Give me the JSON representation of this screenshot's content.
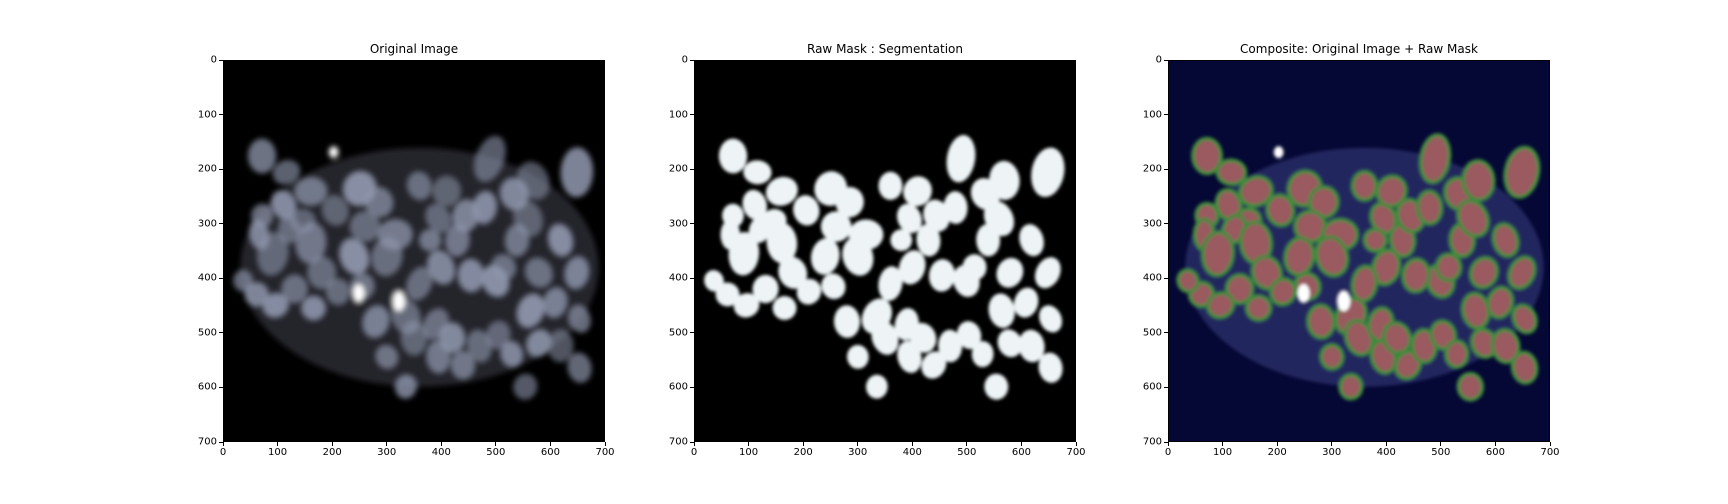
{
  "panels": [
    {
      "id": "original",
      "title": "Original Image",
      "style": "grayscale",
      "xticks": [
        "0",
        "100",
        "200",
        "300",
        "400",
        "500",
        "600",
        "700"
      ],
      "yticks": [
        "0",
        "100",
        "200",
        "300",
        "400",
        "500",
        "600",
        "700"
      ]
    },
    {
      "id": "raw-mask",
      "title": "Raw Mask : Segmentation",
      "style": "mask",
      "xticks": [
        "0",
        "100",
        "200",
        "300",
        "400",
        "500",
        "600",
        "700"
      ],
      "yticks": [
        "0",
        "100",
        "200",
        "300",
        "400",
        "500",
        "600",
        "700"
      ]
    },
    {
      "id": "composite",
      "title": "Composite: Original Image + Raw Mask",
      "style": "composite",
      "xticks": [
        "0",
        "100",
        "200",
        "300",
        "400",
        "500",
        "600",
        "700"
      ],
      "yticks": [
        "0",
        "100",
        "200",
        "300",
        "400",
        "500",
        "600",
        "700"
      ]
    }
  ],
  "colors": {
    "original_background": "#000000",
    "original_nucleus": "#8e95ab",
    "original_bright": "#ffffff",
    "mask_background": "#000000",
    "mask_nucleus": "#eef4f6",
    "composite_background": "#050835",
    "composite_nucleus": "#9a5a5e",
    "composite_outline": "#3f8a3c"
  }
}
